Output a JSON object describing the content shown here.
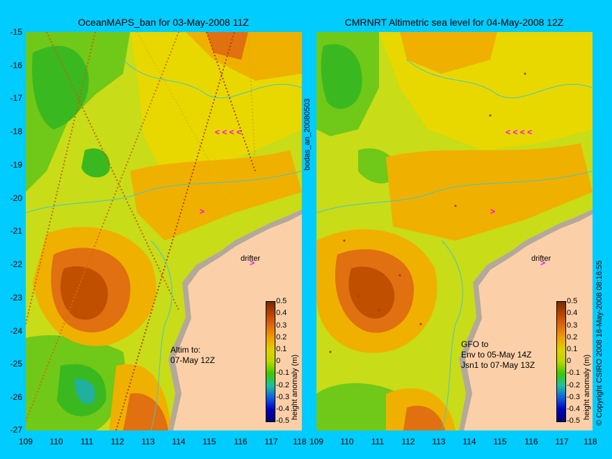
{
  "left_panel": {
    "title": "OceanMAPS_ban for 03-May-2008 11Z",
    "note": "Altim to:\n07-May 12Z",
    "drifter_label": "drifter"
  },
  "right_panel": {
    "title": "CMRNRT Altimetric sea level  for 04-May-2008 12Z",
    "note": "GFO to\nEnv to 05-May 14Z\nJsn1 to 07-May 13Z",
    "drifter_label": "drifter"
  },
  "side_label": "bodas_an_20080503",
  "copyright": "© Copyright CSIRO 2008   16-May-2008 08:16:55",
  "colorbar": {
    "label": "height anomaly (m)",
    "ticks": [
      "0.5",
      "0.4",
      "0.3",
      "0.2",
      "0.1",
      "0",
      "-0.1",
      "-0.2",
      "-0.3",
      "-0.4",
      "-0.5"
    ]
  },
  "axes": {
    "lat_ticks": [
      "-15",
      "-16",
      "-17",
      "-18",
      "-19",
      "-20",
      "-21",
      "-22",
      "-23",
      "-24",
      "-25",
      "-26",
      "-27"
    ],
    "lon_ticks": [
      "109",
      "110",
      "111",
      "112",
      "113",
      "114",
      "115",
      "116",
      "117",
      "118"
    ]
  },
  "colors": {
    "land": "#fbd0a8",
    "coast_shelf": "#b4a89a",
    "background": "#00ccff",
    "marker": "#ff00ff"
  }
}
